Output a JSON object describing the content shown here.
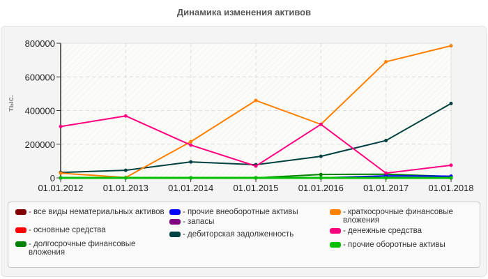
{
  "title": "Динамика изменения активов",
  "y_axis_label": "тыс.",
  "chart_data": {
    "type": "line",
    "title": "Динамика изменения активов",
    "xlabel": "",
    "ylabel": "тыс.",
    "ylim": [
      0,
      800000
    ],
    "y_ticks": [
      "0",
      "200000",
      "400000",
      "600000",
      "800000"
    ],
    "x": [
      "01.01.2012",
      "01.01.2013",
      "01.01.2014",
      "01.01.2015",
      "01.01.2016",
      "01.01.2017",
      "01.01.2018"
    ],
    "grid": true,
    "legend_position": "bottom",
    "series": [
      {
        "name": "все виды нематериальных активов",
        "color": "#800000",
        "values": [
          0,
          0,
          0,
          0,
          0,
          0,
          0
        ]
      },
      {
        "name": "основные средства",
        "color": "#ff0000",
        "values": [
          0,
          0,
          0,
          0,
          0,
          0,
          0
        ]
      },
      {
        "name": "долгосрочные финансовые вложения",
        "color": "#008000",
        "values": [
          0,
          0,
          0,
          0,
          20000,
          22000,
          8000
        ]
      },
      {
        "name": "прочие внеоборотные активы",
        "color": "#0000ff",
        "values": [
          0,
          0,
          0,
          0,
          0,
          12000,
          10000
        ]
      },
      {
        "name": "запасы",
        "color": "#800080",
        "values": [
          0,
          0,
          0,
          0,
          0,
          0,
          0
        ]
      },
      {
        "name": "дебиторская задолженность",
        "color": "#004040",
        "values": [
          32000,
          45000,
          95000,
          78000,
          128000,
          222000,
          442000
        ]
      },
      {
        "name": "краткосрочные финансовые вложения",
        "color": "#ff8000",
        "values": [
          28000,
          2000,
          215000,
          460000,
          318000,
          690000,
          785000
        ]
      },
      {
        "name": "денежные средства",
        "color": "#ff0080",
        "values": [
          305000,
          368000,
          195000,
          70000,
          318000,
          28000,
          75000
        ]
      },
      {
        "name": "прочие оборотные активы",
        "color": "#00c000",
        "values": [
          0,
          0,
          0,
          0,
          0,
          0,
          0
        ]
      }
    ]
  },
  "legend": {
    "items": [
      {
        "label": "- все виды нематериальных активов",
        "color": "#800000"
      },
      {
        "label": "- основные средства",
        "color": "#ff0000"
      },
      {
        "label": "- долгосрочные финансовые вложения",
        "color": "#008000"
      },
      {
        "label": "- прочие внеоборотные активы",
        "color": "#0000ff"
      },
      {
        "label": "- запасы",
        "color": "#800080"
      },
      {
        "label": "- дебиторская задолженность",
        "color": "#004040"
      },
      {
        "label": "- краткосрочные финансовые вложения",
        "color": "#ff8000"
      },
      {
        "label": "- денежные средства",
        "color": "#ff0080"
      },
      {
        "label": "- прочие оборотные активы",
        "color": "#00c000"
      }
    ]
  }
}
